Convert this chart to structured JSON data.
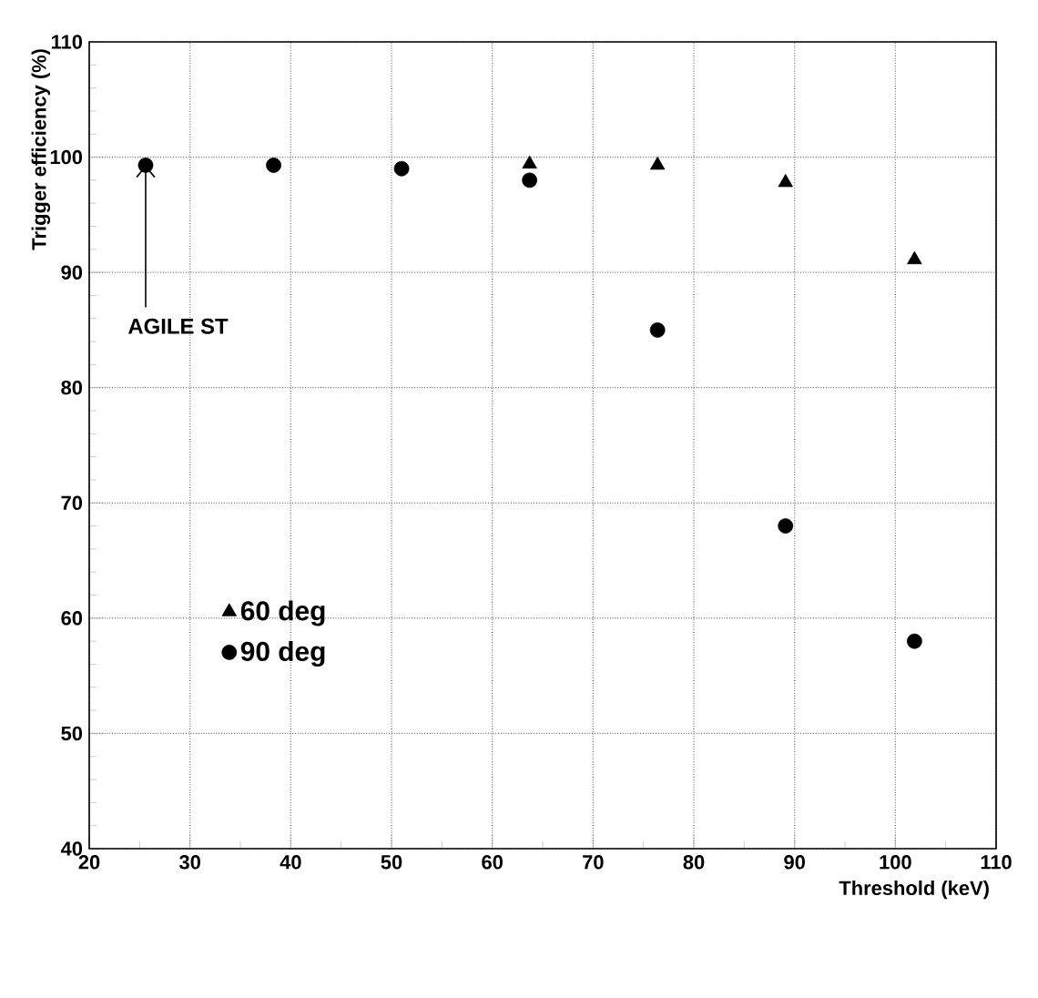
{
  "chart_data": {
    "type": "scatter",
    "xlabel": "Threshold (keV)",
    "ylabel": "Trigger efficiency (%)",
    "x": [
      25.6,
      38.3,
      51.0,
      63.7,
      76.4,
      89.1,
      101.9
    ],
    "series": [
      {
        "name": "60 deg",
        "color": "#000000",
        "marker": "triangle",
        "values": [
          null,
          null,
          null,
          99.4,
          99.3,
          97.8,
          91.1
        ]
      },
      {
        "name": "90 deg",
        "color": "#000000",
        "marker": "circle",
        "values": [
          99.3,
          99.3,
          99.0,
          98.0,
          85.0,
          68.0,
          58.0
        ]
      }
    ],
    "xlim": [
      20,
      110
    ],
    "ylim": [
      40,
      110
    ],
    "xticks": [
      20,
      30,
      40,
      50,
      60,
      70,
      80,
      90,
      100,
      110
    ],
    "yticks": [
      40,
      50,
      60,
      70,
      80,
      90,
      100,
      110
    ],
    "grid": true,
    "legend": "bottom left",
    "annotations": [
      {
        "text": "AGILE ST",
        "x": 25.6,
        "y": 99.3
      }
    ]
  }
}
